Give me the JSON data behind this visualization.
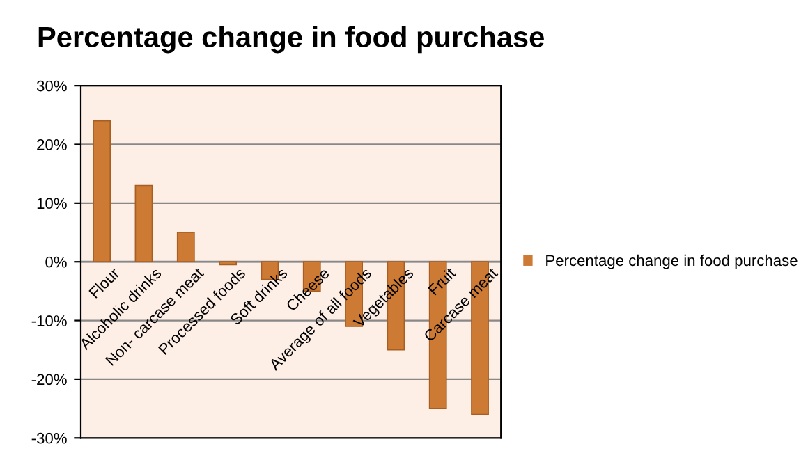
{
  "chart_data": {
    "type": "bar",
    "title": "Percentage change in food purchase",
    "categories": [
      "Flour",
      "Alcoholic drinks",
      "Non- carcase meat",
      "Processed foods",
      "Soft drinks",
      "Cheese",
      "Average of all foods",
      "Vegetables",
      "Fruit",
      "Carcase meat"
    ],
    "series": [
      {
        "name": "Percentage change in food purchase",
        "color": "#cd7a35",
        "values": [
          24,
          13,
          5,
          -0.5,
          -3,
          -5,
          -11,
          -15,
          -25,
          -26
        ]
      }
    ],
    "ylim": [
      -30,
      30
    ],
    "yticks": [
      {
        "value": -30,
        "label": "-30%"
      },
      {
        "value": -20,
        "label": "-20%"
      },
      {
        "value": -10,
        "label": "-10%"
      },
      {
        "value": 0,
        "label": "0%"
      },
      {
        "value": 10,
        "label": "10%"
      },
      {
        "value": 20,
        "label": "20%"
      },
      {
        "value": 30,
        "label": "30%"
      }
    ],
    "grid": "y",
    "legend": "right"
  }
}
